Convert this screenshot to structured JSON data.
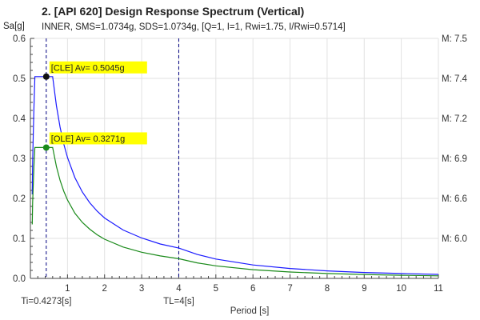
{
  "title": "2. [API 620] Design Response Spectrum (Vertical)",
  "subtitle": "INNER, SMS=1.0734g, SDS=1.0734g, [Q=1, I=1, Rwi=1.75, I/Rwi=0.5714]",
  "colors": {
    "cle": "#1a1aff",
    "ole": "#1a8a1a",
    "highlight": "#ffff00",
    "vline": "#000080",
    "grid": "#e2e2e2"
  },
  "chart_data": {
    "type": "line",
    "ylabel": "Sa[g]",
    "xlabel": "Period [s]",
    "xlim": [
      0,
      11
    ],
    "ylim": [
      0,
      0.6
    ],
    "xticks": [
      1,
      2,
      3,
      4,
      5,
      6,
      7,
      8,
      9,
      10,
      11
    ],
    "yticks": [
      0.0,
      0.1,
      0.2,
      0.3,
      0.4,
      0.5,
      0.6
    ],
    "grid": true,
    "right_axis_labels": [
      {
        "text": "M: 7.5",
        "y": 0.6
      },
      {
        "text": "M: 7.4",
        "y": 0.5
      },
      {
        "text": "M: 7.2",
        "y": 0.4
      },
      {
        "text": "M: 6.9",
        "y": 0.3
      },
      {
        "text": "M: 6.6",
        "y": 0.2
      },
      {
        "text": "M: 6.0",
        "y": 0.1
      }
    ],
    "vlines": [
      {
        "x": 0.4273,
        "label": "Ti=0.4273[s]"
      },
      {
        "x": 4,
        "label": "TL=4[s]"
      }
    ],
    "series": [
      {
        "name": "CLE",
        "color": "#1a1aff",
        "points": [
          [
            0.05,
            0.21
          ],
          [
            0.06,
            0.29
          ],
          [
            0.08,
            0.37
          ],
          [
            0.1,
            0.44
          ],
          [
            0.12,
            0.5045
          ],
          [
            0.6,
            0.5045
          ],
          [
            0.7,
            0.432
          ],
          [
            0.8,
            0.378
          ],
          [
            0.9,
            0.336
          ],
          [
            1.0,
            0.302
          ],
          [
            1.2,
            0.252
          ],
          [
            1.4,
            0.216
          ],
          [
            1.6,
            0.189
          ],
          [
            1.8,
            0.168
          ],
          [
            2.0,
            0.151
          ],
          [
            2.5,
            0.121
          ],
          [
            3.0,
            0.101
          ],
          [
            3.5,
            0.086
          ],
          [
            4.0,
            0.0757
          ],
          [
            4.5,
            0.0598
          ],
          [
            5.0,
            0.0484
          ],
          [
            6.0,
            0.0336
          ],
          [
            7.0,
            0.0247
          ],
          [
            8.0,
            0.0189
          ],
          [
            9.0,
            0.0149
          ],
          [
            10.0,
            0.0121
          ],
          [
            11.0,
            0.01
          ]
        ],
        "marker": {
          "x": 0.4273,
          "y": 0.5045,
          "label": "[CLE] Av= 0.5045g"
        }
      },
      {
        "name": "OLE",
        "color": "#1a8a1a",
        "points": [
          [
            0.05,
            0.135
          ],
          [
            0.06,
            0.19
          ],
          [
            0.08,
            0.24
          ],
          [
            0.1,
            0.29
          ],
          [
            0.12,
            0.3271
          ],
          [
            0.6,
            0.3271
          ],
          [
            0.7,
            0.28
          ],
          [
            0.8,
            0.245
          ],
          [
            0.9,
            0.218
          ],
          [
            1.0,
            0.196
          ],
          [
            1.2,
            0.163
          ],
          [
            1.4,
            0.14
          ],
          [
            1.6,
            0.123
          ],
          [
            1.8,
            0.109
          ],
          [
            2.0,
            0.098
          ],
          [
            2.5,
            0.0785
          ],
          [
            3.0,
            0.0654
          ],
          [
            3.5,
            0.0561
          ],
          [
            4.0,
            0.0491
          ],
          [
            4.5,
            0.0388
          ],
          [
            5.0,
            0.0314
          ],
          [
            6.0,
            0.0218
          ],
          [
            7.0,
            0.016
          ],
          [
            8.0,
            0.0123
          ],
          [
            9.0,
            0.0097
          ],
          [
            10.0,
            0.0079
          ],
          [
            11.0,
            0.0065
          ]
        ],
        "marker": {
          "x": 0.4273,
          "y": 0.3271,
          "label": "[OLE] Av= 0.3271g"
        }
      }
    ]
  }
}
